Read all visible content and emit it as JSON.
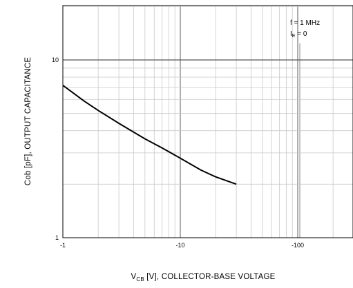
{
  "chart_data": {
    "type": "line",
    "xlabel": "VCB [V], COLLECTOR-BASE VOLTAGE",
    "xlabel_main": "V",
    "xlabel_sub": "CB",
    "xlabel_rest": " [V], COLLECTOR-BASE VOLTAGE",
    "ylabel": "Cob [pF], OUTPUT CAPACITANCE",
    "x_scale": "log",
    "y_scale": "log",
    "x_axis_reversed_negative": true,
    "xlim": [
      -1,
      -300
    ],
    "ylim": [
      1,
      20
    ],
    "grid": true,
    "x_tick_labels": [
      "-1",
      "-10",
      "-100"
    ],
    "y_tick_labels": [
      "1",
      "10"
    ],
    "annotations": [
      "f = 1 MHz",
      "IE = 0"
    ],
    "annotation_f": "f = 1 MHz",
    "annotation_ie_main": "I",
    "annotation_ie_sub": "E",
    "annotation_ie_rest": " = 0",
    "series": [
      {
        "x": [
          -1,
          -1.5,
          -2,
          -3,
          -5,
          -7,
          -10,
          -15,
          -20,
          -30
        ],
        "y": [
          7.2,
          5.9,
          5.2,
          4.4,
          3.6,
          3.2,
          2.8,
          2.4,
          2.2,
          2.0
        ]
      }
    ]
  }
}
